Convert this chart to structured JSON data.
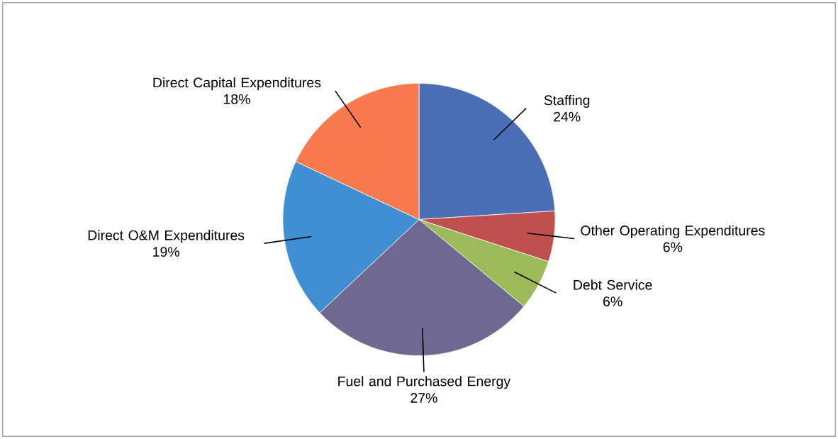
{
  "chart_data": {
    "type": "pie",
    "categories": [
      "Staffing",
      "Other Operating Expenditures",
      "Debt Service",
      "Fuel and Purchased Energy",
      "Direct O&M Expenditures",
      "Direct Capital Expenditures"
    ],
    "values": [
      24,
      6,
      6,
      27,
      19,
      18
    ],
    "value_labels": [
      "24%",
      "6%",
      "6%",
      "27%",
      "19%",
      "18%"
    ],
    "colors": [
      "#4a6fb5",
      "#c0504d",
      "#9bbb59",
      "#6f6890",
      "#3f8fd2",
      "#f97a4f"
    ]
  }
}
